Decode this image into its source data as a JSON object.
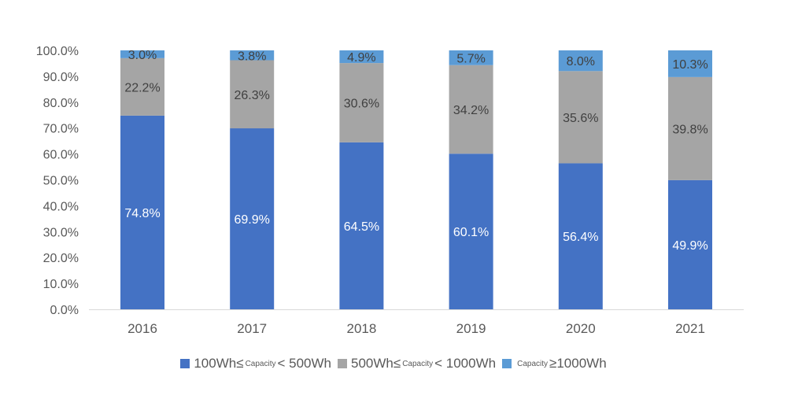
{
  "chart_data": {
    "type": "bar",
    "stacked": true,
    "categories": [
      "2016",
      "2017",
      "2018",
      "2019",
      "2020",
      "2021"
    ],
    "series": [
      {
        "name": "100Wh≤Capacity<500Wh",
        "parts": [
          "100Wh",
          "≤",
          "Capacity",
          "< 500Wh"
        ],
        "color": "#4472C4",
        "values": [
          74.8,
          69.9,
          64.5,
          60.1,
          56.4,
          49.9
        ],
        "labels": [
          "74.8%",
          "69.9%",
          "64.5%",
          "60.1%",
          "56.4%",
          "49.9%"
        ]
      },
      {
        "name": "500Wh≤Capacity<1000Wh",
        "parts": [
          "500Wh",
          "≤",
          "Capacity",
          "< 1000Wh"
        ],
        "color": "#A5A5A5",
        "values": [
          22.2,
          26.3,
          30.6,
          34.2,
          35.6,
          39.8
        ],
        "labels": [
          "22.2%",
          "26.3%",
          "30.6%",
          "34.2%",
          "35.6%",
          "39.8%"
        ]
      },
      {
        "name": "Capacity≥1000Wh",
        "parts": [
          "",
          "",
          "Capacity",
          "≥1000Wh"
        ],
        "color": "#5B9BD5",
        "values": [
          3.0,
          3.8,
          4.9,
          5.7,
          8.0,
          10.3
        ],
        "labels": [
          "3.0%",
          "3.8%",
          "4.9%",
          "5.7%",
          "8.0%",
          "10.3%"
        ]
      }
    ],
    "yticks": [
      "0.0%",
      "10.0%",
      "20.0%",
      "30.0%",
      "40.0%",
      "50.0%",
      "60.0%",
      "70.0%",
      "80.0%",
      "90.0%",
      "100.0%"
    ],
    "ylim": [
      0,
      100
    ],
    "grid": false,
    "legend": "bottom",
    "title": "",
    "xlabel": "",
    "ylabel": ""
  }
}
